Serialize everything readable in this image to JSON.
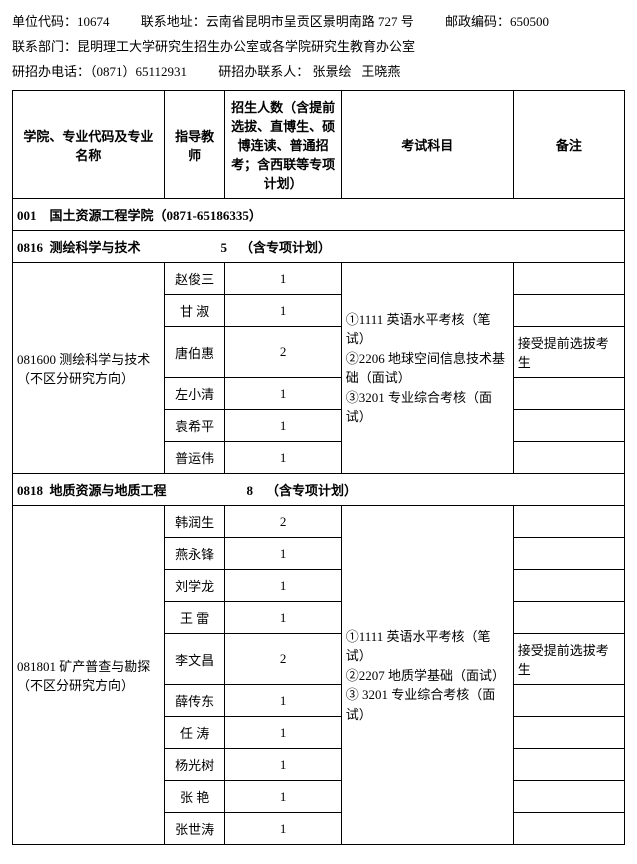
{
  "header": {
    "line1_a": "单位代码：10674",
    "line1_b": "联系地址：云南省昆明市呈贡区景明南路 727 号",
    "line1_c": "邮政编码：650500",
    "line2": "联系部门：昆明理工大学研究生招生办公室或各学院研究生教育办公室",
    "line3_a": "研招办电话：（0871）65112931",
    "line3_b": "研招办联系人：",
    "line3_c": "张景绘",
    "line3_d": "王晓燕"
  },
  "columns": {
    "major": "学院、专业代码及专业名称",
    "advisor": "指导教师",
    "count": "招生人数（含提前选拔、直博生、硕博连读、普通招考；含西联等专项计划）",
    "exam": "考试科目",
    "note": "备注"
  },
  "section1": {
    "title": "001　国土资源工程学院（0871-65186335）"
  },
  "sub1": {
    "code": "0816",
    "name": "测绘科学与技术",
    "count": "5",
    "plan": "（含专项计划）"
  },
  "major1": {
    "name": "081600  测绘科学与技术（不区分研究方向）",
    "advisors": [
      "赵俊三",
      "甘 淑",
      "唐伯惠",
      "左小清",
      "袁希平",
      "普运伟"
    ],
    "counts": [
      "1",
      "1",
      "2",
      "1",
      "1",
      "1"
    ],
    "exam": "①1111 英语水平考核（笔试）\n②2206 地球空间信息技术基础（面试）\n③3201 专业综合考核（面试）",
    "note": "接受提前选拔考生"
  },
  "sub2": {
    "code": "0818",
    "name": "地质资源与地质工程",
    "count": "8",
    "plan": "（含专项计划）"
  },
  "major2": {
    "name": "081801  矿产普查与勘探（不区分研究方向）",
    "advisors": [
      "韩润生",
      "燕永锋",
      "刘学龙",
      "王 雷",
      "李文昌",
      "薛传东",
      "任 涛",
      "杨光树",
      "张 艳",
      "张世涛"
    ],
    "counts": [
      "2",
      "1",
      "1",
      "1",
      "2",
      "1",
      "1",
      "1",
      "1",
      "1"
    ],
    "exam": "①1111 英语水平考核（笔试）\n②2207 地质学基础（面试）\n③ 3201 专业综合考核（面试）",
    "note": "接受提前选拔考生"
  }
}
